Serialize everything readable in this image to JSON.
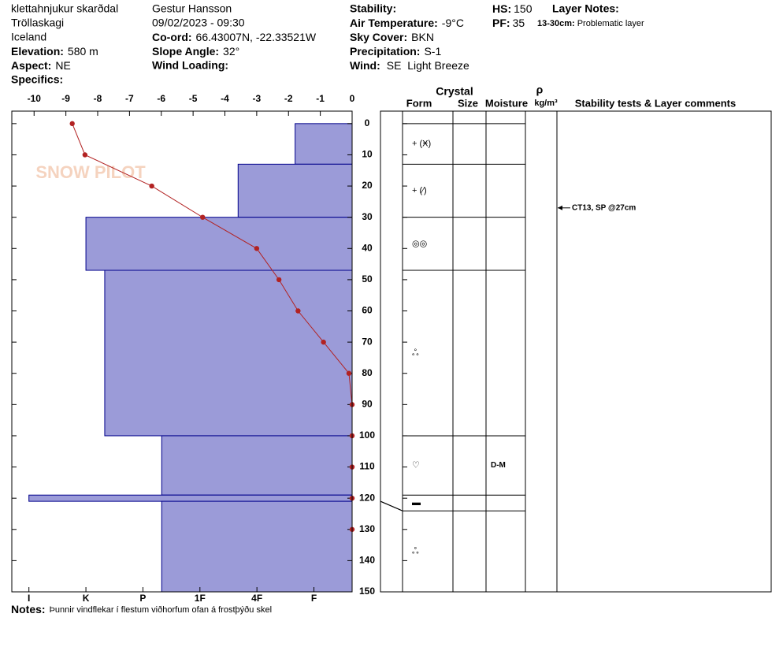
{
  "header": {
    "location": "klettahnjukur skarðdal",
    "region": "Tröllaskagi",
    "country": "Iceland",
    "elevation_label": "Elevation:",
    "elevation": "580 m",
    "aspect_label": "Aspect:",
    "aspect": "NE",
    "specifics_label": "Specifics:",
    "observer": "Gestur Hansson",
    "datetime": "09/02/2023 - 09:30",
    "coord_label": "Co-ord:",
    "coord": "66.43007N, -22.33521W",
    "slope_label": "Slope Angle:",
    "slope": "32°",
    "wind_loading_label": "Wind Loading:",
    "stability_label": "Stability:",
    "air_temp_label": "Air Temperature:",
    "air_temp": "-9°C",
    "sky_label": "Sky Cover:",
    "sky": "BKN",
    "precip_label": "Precipitation:",
    "precip": "S-1",
    "wind_label": "Wind:",
    "wind": "SE  Light Breeze",
    "hs_label": "HS:",
    "hs": "150",
    "pf_label": "PF:",
    "pf": "35",
    "layer_notes_label": "Layer Notes:",
    "layer_note_range": "13-30cm:",
    "layer_note": "Problematic layer",
    "notes_label": "Notes:",
    "notes": "Þunnir vindflekar í flestum viðhorfum ofan á frostþýðu skel",
    "watermark": "SNOW PILOT"
  },
  "columns": {
    "crystal": "Crystal",
    "form": "Form",
    "size": "Size",
    "moisture": "Moisture",
    "rho": "ρ",
    "density_unit": "kg/m³",
    "comments": "Stability tests & Layer comments"
  },
  "chart_data": {
    "type": "snow-profile",
    "ylim": [
      -4,
      150
    ],
    "yticks": [
      0,
      10,
      20,
      30,
      40,
      50,
      60,
      70,
      80,
      90,
      100,
      110,
      120,
      130,
      140,
      150
    ],
    "xlim": [
      -10.7,
      0
    ],
    "xticks": [
      -10,
      -9,
      -8,
      -7,
      -6,
      -5,
      -4,
      -3,
      -2,
      -1,
      0
    ],
    "hardness_lim": [
      0.33,
      6.3
    ],
    "hardness_ticks": [
      {
        "value": 6,
        "label": "I"
      },
      {
        "value": 5,
        "label": "K"
      },
      {
        "value": 4,
        "label": "P"
      },
      {
        "value": 3,
        "label": "1F"
      },
      {
        "value": 2,
        "label": "4F"
      },
      {
        "value": 1,
        "label": "F"
      }
    ],
    "hardness_color": "#9b9bd8",
    "temperature": {
      "color": "#b22222",
      "depth": [
        0,
        10,
        20,
        30,
        40,
        50,
        60,
        70,
        80,
        90,
        100,
        110,
        120,
        130
      ],
      "values": [
        -8.8,
        -8.4,
        -6.3,
        -4.7,
        -3.0,
        -2.3,
        -1.7,
        -0.9,
        -0.1,
        0,
        0,
        0,
        0,
        0
      ]
    },
    "layers": [
      {
        "top": 0,
        "bottom": 13,
        "hardness": 1.33,
        "form": "+ (Ӿ)"
      },
      {
        "top": 13,
        "bottom": 30,
        "hardness": 2.33,
        "form": "+ (⁄)"
      },
      {
        "top": 30,
        "bottom": 47,
        "hardness": 5,
        "form": "◎◎"
      },
      {
        "top": 47,
        "bottom": 100,
        "hardness": 4.67,
        "form": "ஃ"
      },
      {
        "top": 100,
        "bottom": 119,
        "hardness": 3.67,
        "form": "♡",
        "moisture": "D-M"
      },
      {
        "top": 119,
        "bottom": 121,
        "hardness": 6,
        "form": "▬"
      },
      {
        "top": 121,
        "bottom": 150,
        "hardness": 3.67,
        "form": "ஃ"
      }
    ],
    "comments": [
      {
        "depth": 27,
        "text": "CT13, SP @27cm"
      }
    ]
  }
}
